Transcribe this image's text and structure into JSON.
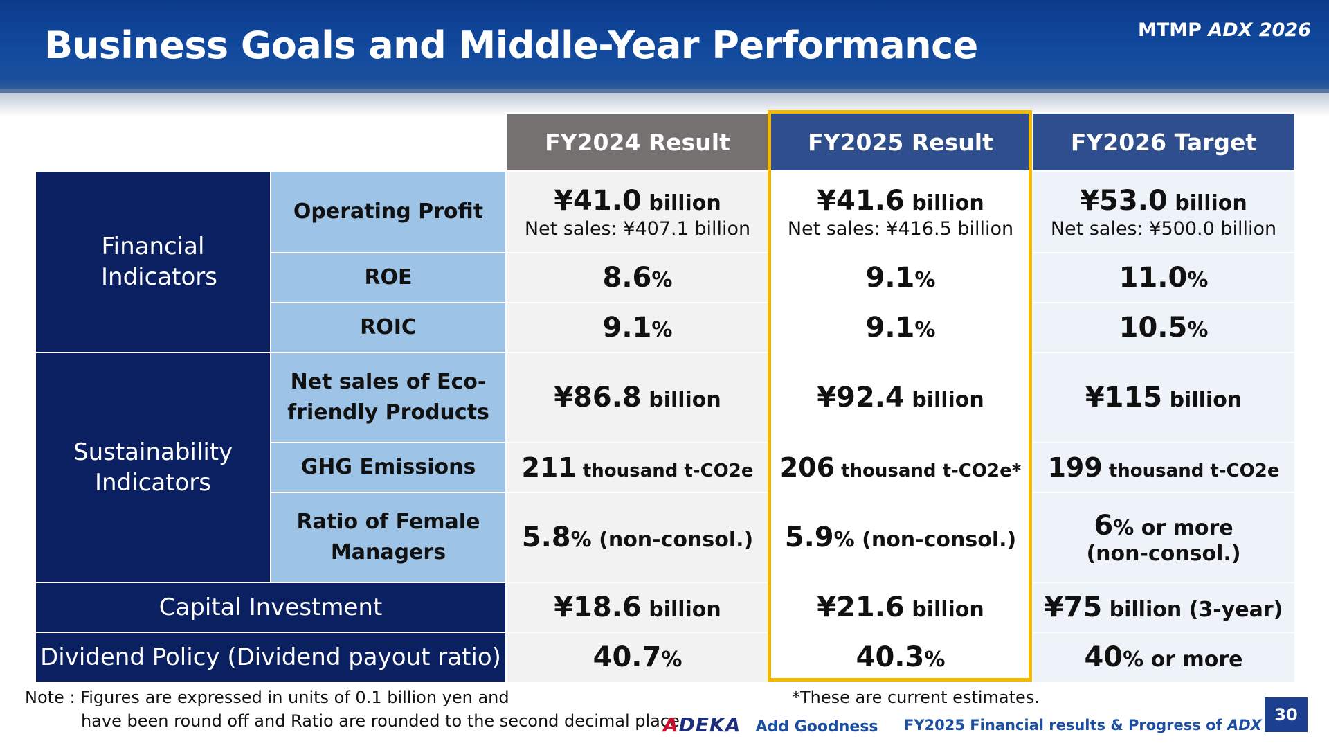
{
  "header": {
    "title": "Business Goals and Middle-Year Performance",
    "plan_prefix": "MTMP",
    "plan_name": "ADX 2026"
  },
  "table": {
    "columns": [
      "FY2024 Result",
      "FY2025 Result",
      "FY2026 Target"
    ],
    "categories": {
      "financial": "Financial Indicators",
      "sustainability": "Sustainability Indicators"
    },
    "rows": {
      "operating_profit": {
        "label": "Operating Profit",
        "fy2024": {
          "main": "¥41.0",
          "unit": " billion",
          "sub": "Net sales: ¥407.1 billion"
        },
        "fy2025": {
          "main": "¥41.6",
          "unit": " billion",
          "sub": "Net sales: ¥416.5 billion"
        },
        "fy2026": {
          "main": "¥53.0",
          "unit": " billion",
          "sub": "Net sales: ¥500.0 billion"
        }
      },
      "roe": {
        "label": "ROE",
        "fy2024": {
          "main": "8.6",
          "unit": "%"
        },
        "fy2025": {
          "main": "9.1",
          "unit": "%"
        },
        "fy2026": {
          "main": "11.0",
          "unit": "%"
        }
      },
      "roic": {
        "label": "ROIC",
        "fy2024": {
          "main": "9.1",
          "unit": "%"
        },
        "fy2025": {
          "main": "9.1",
          "unit": "%"
        },
        "fy2026": {
          "main": "10.5",
          "unit": "%"
        }
      },
      "eco_sales": {
        "label_line1": "Net sales of Eco-",
        "label_line2": "friendly Products",
        "fy2024": {
          "main": "¥86.8",
          "unit": " billion"
        },
        "fy2025": {
          "main": "¥92.4",
          "unit": " billion"
        },
        "fy2026": {
          "main": "¥115",
          "unit": " billion"
        }
      },
      "ghg": {
        "label": "GHG Emissions",
        "fy2024": {
          "main": "211",
          "unit": " thousand t-CO2e"
        },
        "fy2025": {
          "main": "206",
          "unit": " thousand t-CO2e*"
        },
        "fy2026": {
          "main": "199",
          "unit": " thousand t-CO2e"
        }
      },
      "female_managers": {
        "label_line1": "Ratio of Female",
        "label_line2": "Managers",
        "fy2024": {
          "main": "5.8",
          "unit": "% (non-consol.)"
        },
        "fy2025": {
          "main": "5.9",
          "unit": "% (non-consol.)"
        },
        "fy2026": {
          "main": "6",
          "unit": "% or more",
          "sub": "(non-consol.)"
        }
      },
      "capital_investment": {
        "label": "Capital Investment",
        "fy2024": {
          "main": "¥18.6",
          "unit": " billion"
        },
        "fy2025": {
          "main": "¥21.6",
          "unit": " billion"
        },
        "fy2026": {
          "main": "¥75",
          "unit": " billion (3-year)"
        }
      },
      "dividend_policy": {
        "label": "Dividend Policy (Dividend payout ratio)",
        "fy2024": {
          "main": "40.7",
          "unit": "%"
        },
        "fy2025": {
          "main": "40.3",
          "unit": "%"
        },
        "fy2026": {
          "main": "40",
          "unit": "% or more"
        }
      }
    }
  },
  "footer": {
    "note_line1": "Note : Figures are expressed in units of 0.1 billion yen and",
    "note_line2": "have been round off and Ratio are rounded to the second decimal place.",
    "estimate_note": "*These are current estimates.",
    "logo_a": "A",
    "logo_rest": "DEKA",
    "logo_tagline": "Add Goodness",
    "title_prefix": "FY2025 Financial results & Progress of ",
    "title_plan": "ADX 2026",
    "page_number": "30"
  },
  "colors": {
    "header_blue": "#124a9e",
    "category_navy": "#0b2060",
    "subcategory_light_blue": "#9dc3e6",
    "fy2024_header_gray": "#767171",
    "fy_header_blue": "#2f4e8e",
    "highlight_yellow": "#f5b800",
    "logo_red": "#c8102e"
  }
}
